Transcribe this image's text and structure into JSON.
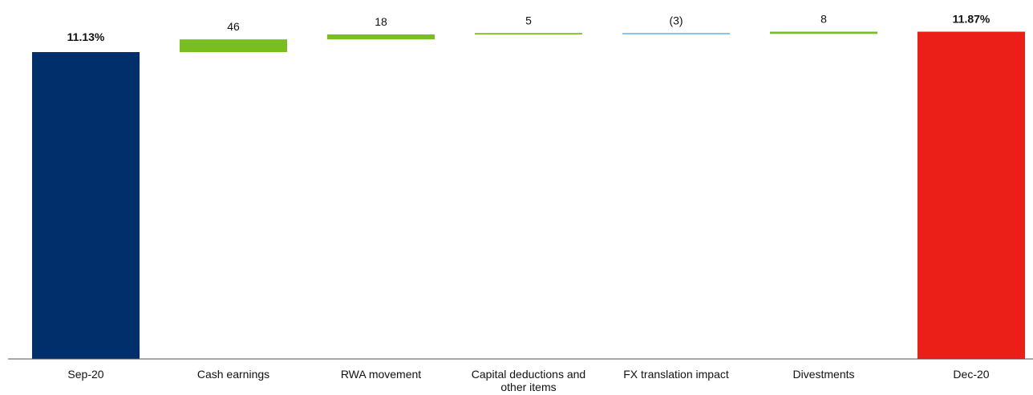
{
  "chart_data": {
    "type": "waterfall",
    "title": "",
    "xlabel": "",
    "ylabel": "",
    "categories": [
      "Sep-20",
      "Cash earnings",
      "RWA movement",
      "Capital deductions and other items",
      "FX translation impact",
      "Divestments",
      "Dec-20"
    ],
    "start": {
      "category": "Sep-20",
      "value": 11.13,
      "label": "11.13%"
    },
    "steps": [
      {
        "category": "Cash earnings",
        "value": 46,
        "label": "46",
        "unit": "bps"
      },
      {
        "category": "RWA movement",
        "value": 18,
        "label": "18",
        "unit": "bps"
      },
      {
        "category": "Capital deductions and other items",
        "value": 5,
        "label": "5",
        "unit": "bps"
      },
      {
        "category": "FX translation impact",
        "value": -3,
        "label": "(3)",
        "unit": "bps"
      },
      {
        "category": "Divestments",
        "value": 8,
        "label": "8",
        "unit": "bps"
      }
    ],
    "end": {
      "category": "Dec-20",
      "value": 11.87,
      "label": "11.87%"
    },
    "colors": {
      "start": "#002f6c",
      "increase": "#78be20",
      "decrease": "#5fb3e4",
      "end": "#eb1e18",
      "axis": "#555555"
    },
    "grid": false,
    "legend": "none"
  }
}
